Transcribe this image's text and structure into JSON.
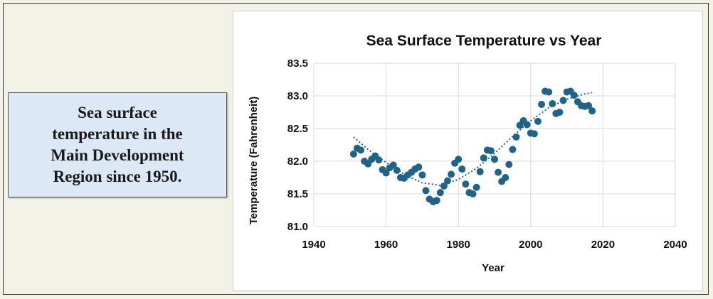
{
  "caption": {
    "text": "Sea surface\ntemperature in the\nMain Development\nRegion since 1950."
  },
  "colors": {
    "marker": "#1f6488",
    "trendline": "#1f6488",
    "caption_background": "#dde8f6",
    "gridline": "#d9d9d9"
  },
  "chart_data": {
    "type": "scatter",
    "title": "Sea Surface Temperature vs Year",
    "xlabel": "Year",
    "ylabel": "Temperature (Fahrenheit)",
    "xlim": [
      1940,
      2040
    ],
    "ylim": [
      81.0,
      83.5
    ],
    "x_ticks": [
      1940,
      1960,
      1980,
      2000,
      2020,
      2040
    ],
    "y_ticks": [
      "81.0",
      "81.5",
      "82.0",
      "82.5",
      "83.0",
      "83.5"
    ],
    "grid": true,
    "legend": "none",
    "trendline": "polynomial (dotted)",
    "trend_points": [
      [
        1951,
        82.37
      ],
      [
        1955,
        82.18
      ],
      [
        1960,
        81.98
      ],
      [
        1965,
        81.8
      ],
      [
        1970,
        81.67
      ],
      [
        1975,
        81.63
      ],
      [
        1980,
        81.72
      ],
      [
        1985,
        81.89
      ],
      [
        1990,
        82.12
      ],
      [
        1995,
        82.38
      ],
      [
        2000,
        82.62
      ],
      [
        2005,
        82.82
      ],
      [
        2010,
        82.95
      ],
      [
        2015,
        83.03
      ],
      [
        2017,
        83.05
      ]
    ],
    "points": [
      [
        1951,
        82.11
      ],
      [
        1952,
        82.2
      ],
      [
        1953,
        82.17
      ],
      [
        1954,
        82.0
      ],
      [
        1955,
        81.96
      ],
      [
        1956,
        82.03
      ],
      [
        1957,
        82.08
      ],
      [
        1958,
        82.02
      ],
      [
        1959,
        81.87
      ],
      [
        1960,
        81.82
      ],
      [
        1961,
        81.9
      ],
      [
        1962,
        81.94
      ],
      [
        1963,
        81.86
      ],
      [
        1964,
        81.75
      ],
      [
        1965,
        81.74
      ],
      [
        1966,
        81.79
      ],
      [
        1967,
        81.83
      ],
      [
        1968,
        81.88
      ],
      [
        1969,
        81.91
      ],
      [
        1970,
        81.79
      ],
      [
        1971,
        81.55
      ],
      [
        1972,
        81.42
      ],
      [
        1973,
        81.38
      ],
      [
        1974,
        81.4
      ],
      [
        1975,
        81.52
      ],
      [
        1976,
        81.62
      ],
      [
        1977,
        81.7
      ],
      [
        1978,
        81.8
      ],
      [
        1979,
        81.97
      ],
      [
        1980,
        82.03
      ],
      [
        1981,
        81.88
      ],
      [
        1982,
        81.65
      ],
      [
        1983,
        81.52
      ],
      [
        1984,
        81.5
      ],
      [
        1985,
        81.6
      ],
      [
        1986,
        81.84
      ],
      [
        1987,
        82.05
      ],
      [
        1988,
        82.17
      ],
      [
        1989,
        82.16
      ],
      [
        1990,
        82.03
      ],
      [
        1991,
        81.83
      ],
      [
        1992,
        81.69
      ],
      [
        1993,
        81.75
      ],
      [
        1994,
        81.95
      ],
      [
        1995,
        82.18
      ],
      [
        1996,
        82.37
      ],
      [
        1997,
        82.55
      ],
      [
        1998,
        82.62
      ],
      [
        1999,
        82.56
      ],
      [
        2000,
        82.43
      ],
      [
        2001,
        82.42
      ],
      [
        2002,
        82.61
      ],
      [
        2003,
        82.87
      ],
      [
        2004,
        83.07
      ],
      [
        2005,
        83.06
      ],
      [
        2006,
        82.88
      ],
      [
        2007,
        82.73
      ],
      [
        2008,
        82.75
      ],
      [
        2009,
        82.93
      ],
      [
        2010,
        83.06
      ],
      [
        2011,
        83.07
      ],
      [
        2012,
        83.01
      ],
      [
        2013,
        82.91
      ],
      [
        2014,
        82.85
      ],
      [
        2015,
        82.84
      ],
      [
        2016,
        82.85
      ],
      [
        2017,
        82.77
      ]
    ]
  }
}
